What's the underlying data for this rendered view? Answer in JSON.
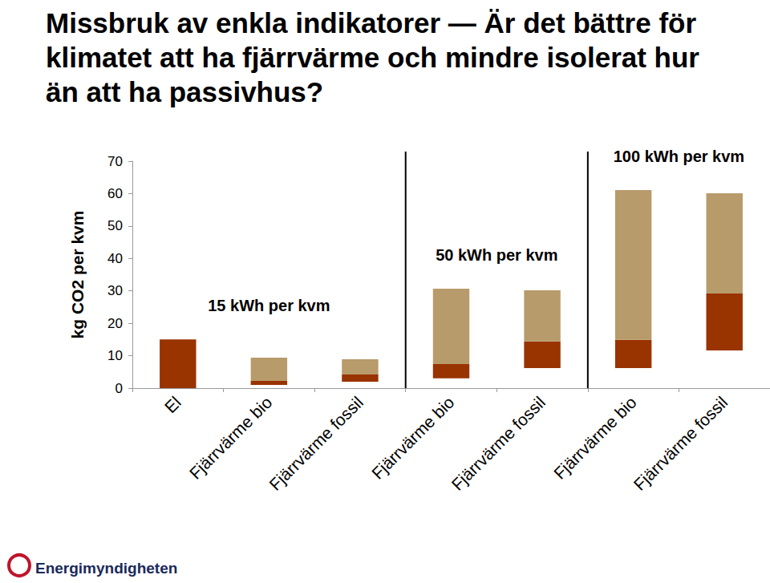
{
  "chart_data": {
    "type": "bar",
    "title": "Missbruk av enkla indikatorer — Är det bättre för klimatet att ha fjärrvärme och mindre isolerat hur än att ha passivhus?",
    "y_label": "kg CO2 per kvm",
    "categories": [
      "El",
      "Fjärrvärme bio",
      "Fjärrvärme fossil",
      "Fjärrvärme bio",
      "Fjärrvärme fossil",
      "Fjärrvärme bio",
      "Fjärrvärme fossil"
    ],
    "base": [
      0,
      1,
      2,
      3,
      6.2,
      6.2,
      11.6
    ],
    "series": [
      {
        "color": "#993300",
        "values": [
          15,
          1.2,
          2.2,
          4.4,
          8.2,
          8.7,
          17.6
        ]
      },
      {
        "color": "#b89b6a",
        "values": [
          0,
          7.2,
          4.7,
          23.3,
          15.8,
          46.2,
          30.9
        ]
      }
    ],
    "groups": [
      {
        "label": "15 kWh per kvm",
        "count": 3
      },
      {
        "label": "50 kWh per kvm",
        "count": 2
      },
      {
        "label": "100 kWh per kvm",
        "count": 2
      }
    ],
    "ylim": [
      0,
      70
    ],
    "yticks": [
      0,
      10,
      20,
      30,
      40,
      50,
      60,
      70
    ],
    "stacked": true,
    "grid": false,
    "source": "Energimyndigheten"
  }
}
